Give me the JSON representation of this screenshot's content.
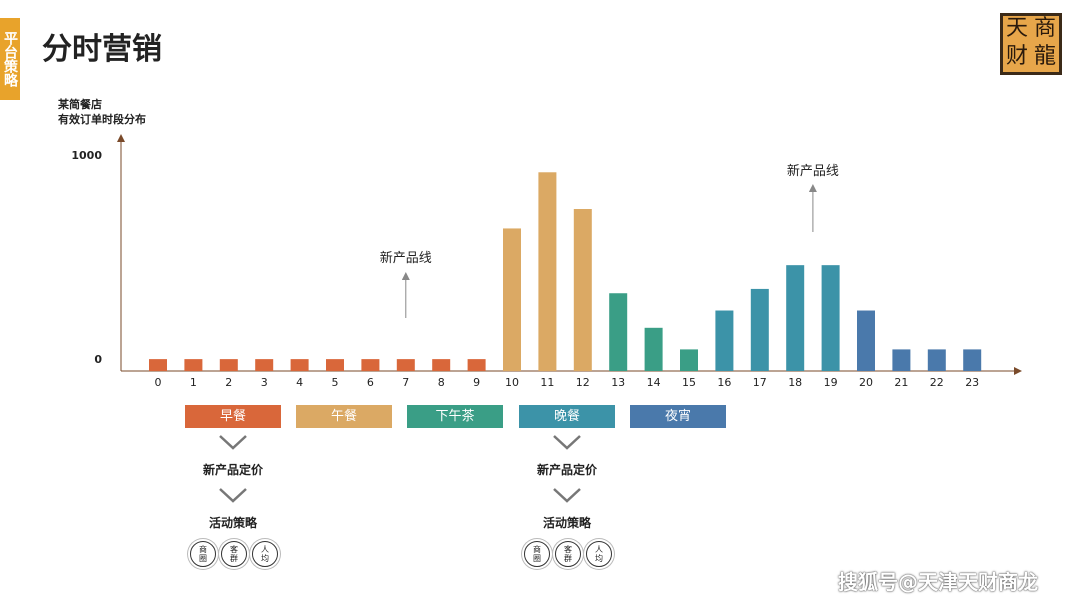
{
  "side_tab": "平台策略",
  "title": "分时营销",
  "logo": [
    "天",
    "商",
    "财",
    "龍"
  ],
  "chart_data": {
    "type": "bar",
    "subtitle_lines": [
      "某简餐店",
      "有效订单时段分布"
    ],
    "categories": [
      "0",
      "1",
      "2",
      "3",
      "4",
      "5",
      "6",
      "7",
      "8",
      "9",
      "10",
      "11",
      "12",
      "13",
      "14",
      "15",
      "16",
      "17",
      "18",
      "19",
      "20",
      "21",
      "22",
      "23"
    ],
    "values": [
      55,
      55,
      55,
      55,
      55,
      55,
      55,
      55,
      55,
      55,
      660,
      920,
      750,
      360,
      200,
      100,
      280,
      380,
      490,
      490,
      280,
      100,
      100,
      100
    ],
    "colors": [
      "#d9673a",
      "#d9673a",
      "#d9673a",
      "#d9673a",
      "#d9673a",
      "#d9673a",
      "#d9673a",
      "#d9673a",
      "#d9673a",
      "#d9673a",
      "#dba964",
      "#dba964",
      "#dba964",
      "#3a9e86",
      "#3a9e86",
      "#3a9e86",
      "#3c93a8",
      "#3c93a8",
      "#3c93a8",
      "#3c93a8",
      "#4a79ab",
      "#4a79ab",
      "#4a79ab",
      "#4a79ab"
    ],
    "ytick_labels": [
      "0",
      "1000"
    ],
    "ylim": [
      0,
      1000
    ],
    "annotations": [
      {
        "text": "新产品线",
        "x": 7
      },
      {
        "text": "新产品线",
        "x": 18.5
      }
    ]
  },
  "periods": [
    {
      "label": "早餐",
      "color": "#d9673a"
    },
    {
      "label": "午餐",
      "color": "#dba964"
    },
    {
      "label": "下午茶",
      "color": "#3a9e86"
    },
    {
      "label": "晚餐",
      "color": "#3c93a8"
    },
    {
      "label": "夜宵",
      "color": "#4a79ab"
    }
  ],
  "strategies": [
    {
      "step1": "新产品定价",
      "step2": "活动策略",
      "circles": [
        [
          "商",
          "圈"
        ],
        [
          "客",
          "群"
        ],
        [
          "人",
          "均"
        ]
      ]
    },
    {
      "step1": "新产品定价",
      "step2": "活动策略",
      "circles": [
        [
          "商",
          "圈"
        ],
        [
          "客",
          "群"
        ],
        [
          "人",
          "均"
        ]
      ]
    }
  ],
  "watermark": "搜狐号@天津天财商龙"
}
